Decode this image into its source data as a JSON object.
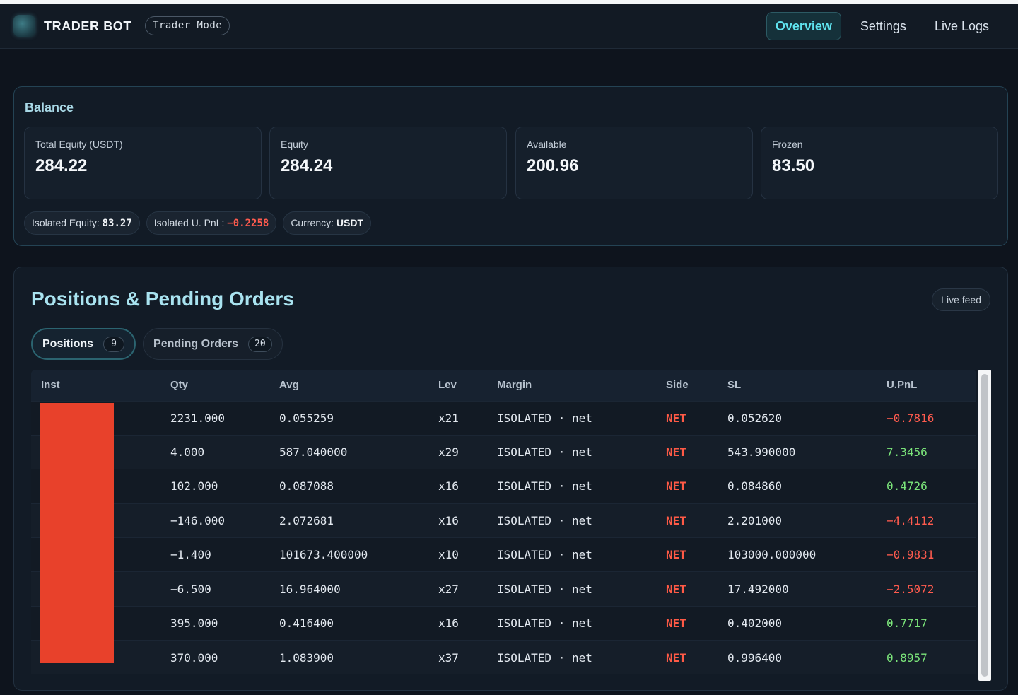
{
  "app": {
    "brand": "TRADER BOT",
    "mode": "Trader Mode"
  },
  "nav": {
    "items": [
      {
        "label": "Overview",
        "active": true
      },
      {
        "label": "Settings",
        "active": false
      },
      {
        "label": "Live Logs",
        "active": false
      }
    ]
  },
  "balance": {
    "title": "Balance",
    "stats": [
      {
        "label": "Total Equity (USDT)",
        "value": "284.22"
      },
      {
        "label": "Equity",
        "value": "284.24"
      },
      {
        "label": "Available",
        "value": "200.96"
      },
      {
        "label": "Frozen",
        "value": "83.50"
      }
    ],
    "chips": {
      "isolated_equity_label": "Isolated Equity:",
      "isolated_equity_value": "83.27",
      "isolated_upnl_label": "Isolated U. PnL:",
      "isolated_upnl_value": "−0.2258",
      "currency_label": "Currency:",
      "currency_value": "USDT"
    }
  },
  "positions": {
    "title": "Positions & Pending Orders",
    "live_feed": "Live feed",
    "tabs": [
      {
        "label": "Positions",
        "count": "9",
        "active": true
      },
      {
        "label": "Pending Orders",
        "count": "20",
        "active": false
      }
    ],
    "columns": [
      "Inst",
      "Qty",
      "Avg",
      "Lev",
      "Margin",
      "Side",
      "SL",
      "U.PnL"
    ],
    "rows": [
      {
        "qty": "2231.000",
        "avg": "0.055259",
        "lev": "x21",
        "margin": "ISOLATED · net",
        "side": "NET",
        "sl": "0.052620",
        "upnl": "−0.7816",
        "upnl_sign": "neg"
      },
      {
        "qty": "4.000",
        "avg": "587.040000",
        "lev": "x29",
        "margin": "ISOLATED · net",
        "side": "NET",
        "sl": "543.990000",
        "upnl": "7.3456",
        "upnl_sign": "pos"
      },
      {
        "qty": "102.000",
        "avg": "0.087088",
        "lev": "x16",
        "margin": "ISOLATED · net",
        "side": "NET",
        "sl": "0.084860",
        "upnl": "0.4726",
        "upnl_sign": "pos"
      },
      {
        "qty": "−146.000",
        "avg": "2.072681",
        "lev": "x16",
        "margin": "ISOLATED · net",
        "side": "NET",
        "sl": "2.201000",
        "upnl": "−4.4112",
        "upnl_sign": "neg"
      },
      {
        "qty": "−1.400",
        "avg": "101673.400000",
        "lev": "x10",
        "margin": "ISOLATED · net",
        "side": "NET",
        "sl": "103000.000000",
        "upnl": "−0.9831",
        "upnl_sign": "neg"
      },
      {
        "qty": "−6.500",
        "avg": "16.964000",
        "lev": "x27",
        "margin": "ISOLATED · net",
        "side": "NET",
        "sl": "17.492000",
        "upnl": "−2.5072",
        "upnl_sign": "neg"
      },
      {
        "qty": "395.000",
        "avg": "0.416400",
        "lev": "x16",
        "margin": "ISOLATED · net",
        "side": "NET",
        "sl": "0.402000",
        "upnl": "0.7717",
        "upnl_sign": "pos"
      },
      {
        "qty": "370.000",
        "avg": "1.083900",
        "lev": "x37",
        "margin": "ISOLATED · net",
        "side": "NET",
        "sl": "0.996400",
        "upnl": "0.8957",
        "upnl_sign": "pos"
      }
    ]
  },
  "colors": {
    "accent": "#5fe3ef",
    "negative": "#ff5b4e",
    "positive": "#7be57a",
    "side": "#ff5a46",
    "redaction": "#e8412b"
  }
}
